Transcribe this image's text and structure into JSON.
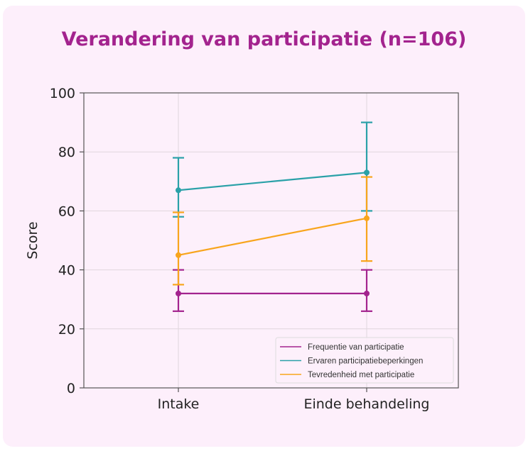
{
  "chart_data": {
    "type": "line",
    "title": "Verandering van participatie (n=106)",
    "xlabel": "",
    "ylabel": "Score",
    "categories": [
      "Intake",
      "Einde behandeling"
    ],
    "ylim": [
      0,
      100
    ],
    "yticks": [
      "0",
      "20",
      "40",
      "60",
      "80",
      "100"
    ],
    "grid": true,
    "legend_position": "bottom-right",
    "series": [
      {
        "name": "Frequentie van participatie",
        "color": "#a3238e",
        "values": [
          32,
          32
        ],
        "err_low": [
          26,
          26
        ],
        "err_high": [
          40,
          40
        ]
      },
      {
        "name": "Ervaren participatiebeperkingen",
        "color": "#2aa1a8",
        "values": [
          67,
          73
        ],
        "err_low": [
          58,
          60
        ],
        "err_high": [
          78,
          90
        ]
      },
      {
        "name": "Tevredenheid met participatie",
        "color": "#f8a51d",
        "values": [
          45,
          57.5
        ],
        "err_low": [
          35,
          43
        ],
        "err_high": [
          59.5,
          71.5
        ]
      }
    ]
  }
}
